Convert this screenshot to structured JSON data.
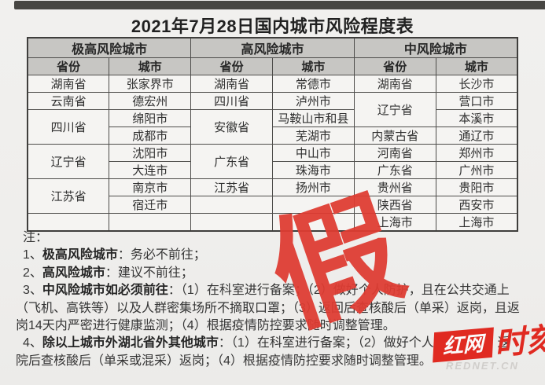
{
  "title": "2021年7月28日国内城市风险程度表",
  "table": {
    "group_headers": [
      "极高风险城市",
      "高风险城市",
      "中风险城市"
    ],
    "col_headers": [
      "省份",
      "城市",
      "省份",
      "城市",
      "省份",
      "城市"
    ],
    "rows": [
      [
        {
          "t": "湖南省"
        },
        {
          "t": "张家界市"
        },
        {
          "t": "湖南省"
        },
        {
          "t": "常德市"
        },
        {
          "t": "湖南省"
        },
        {
          "t": "长沙市"
        }
      ],
      [
        {
          "t": "云南省"
        },
        {
          "t": "德宏州"
        },
        {
          "t": "四川省"
        },
        {
          "t": "泸州市"
        },
        {
          "t": "辽宁省",
          "rs": 2
        },
        {
          "t": "营口市"
        }
      ],
      [
        {
          "t": "四川省",
          "rs": 2
        },
        {
          "t": "绵阳市"
        },
        {
          "t": "安徽省",
          "rs": 2
        },
        {
          "t": "马鞍山市和县"
        },
        {
          "t": "本溪市"
        }
      ],
      [
        {
          "t": "成都市"
        },
        {
          "t": "芜湖市"
        },
        {
          "t": "内蒙古省"
        },
        {
          "t": "通辽市"
        }
      ],
      [
        {
          "t": "辽宁省",
          "rs": 2
        },
        {
          "t": "沈阳市"
        },
        {
          "t": "广东省",
          "rs": 2
        },
        {
          "t": "中山市"
        },
        {
          "t": "河南省"
        },
        {
          "t": "郑州市"
        }
      ],
      [
        {
          "t": "大连市"
        },
        {
          "t": "珠海市"
        },
        {
          "t": "广东省"
        },
        {
          "t": "广州市"
        }
      ],
      [
        {
          "t": "江苏省",
          "rs": 2
        },
        {
          "t": "南京市"
        },
        {
          "t": "江苏省"
        },
        {
          "t": "扬州市"
        },
        {
          "t": "贵州省"
        },
        {
          "t": "贵阳市"
        }
      ],
      [
        {
          "t": "宿迁市"
        },
        {
          "t": ""
        },
        {
          "t": ""
        },
        {
          "t": "陕西省"
        },
        {
          "t": "西安市"
        }
      ],
      [
        {
          "t": ""
        },
        {
          "t": ""
        },
        {
          "t": ""
        },
        {
          "t": ""
        },
        {
          "t": "上海市"
        },
        {
          "t": "上海市"
        }
      ]
    ]
  },
  "notes": {
    "lines": [
      {
        "ind": 1,
        "segs": [
          {
            "t": "注："
          }
        ]
      },
      {
        "ind": 1,
        "segs": [
          {
            "t": "1、"
          },
          {
            "t": "极高风险城市",
            "b": 1
          },
          {
            "t": "：务必不前往；"
          }
        ]
      },
      {
        "ind": 1,
        "segs": [
          {
            "t": "2、"
          },
          {
            "t": "高风险城市",
            "b": 1
          },
          {
            "t": "：建议不前往；"
          }
        ]
      },
      {
        "ind": 1,
        "segs": [
          {
            "t": "3、"
          },
          {
            "t": "中风险城市如必须前往",
            "b": 1
          },
          {
            "t": "：（1）在科室进行备案"
          },
          {
            "t": "；（2）做好个人防护",
            "occ": 1
          },
          {
            "t": "，且在公共交通上"
          }
        ]
      },
      {
        "ind": 0,
        "segs": [
          {
            "t": "（飞机、高铁等）以及人群密集场所不摘取口罩；（"
          },
          {
            "t": "3）返回后查",
            "occ": 1
          },
          {
            "t": "核酸后（单采）返岗，且返"
          }
        ]
      },
      {
        "ind": 0,
        "segs": [
          {
            "t": "岗14天内严密进行健康监测；（4）根据疫情防控要"
          },
          {
            "t": "求随",
            "occ": 1
          },
          {
            "t": "时调整管理。"
          }
        ]
      },
      {
        "ind": 1,
        "segs": [
          {
            "t": "4、"
          },
          {
            "t": "除以上城市外湖北省外其他城市",
            "b": 1
          },
          {
            "t": "：（1）在科室进行备案；（2）做好"
          },
          {
            "t": "个人防护；（3）返",
            "occ": 1
          }
        ]
      },
      {
        "ind": 0,
        "segs": [
          {
            "t": "院后查核酸后（单采或混采）返岗；（4）根据疫情防控要求随时调整管理。"
          }
        ]
      }
    ]
  },
  "watermark": {
    "text": "假",
    "color": "#e23a30"
  },
  "logo": {
    "box_text": "红网",
    "side_text": "时刻",
    "url": "REDNET.CN",
    "red": "#e3271e"
  },
  "colors": {
    "header_bg": "#c9c8c5",
    "border": "#4c4b49",
    "page_bg": "#f2f1ef",
    "stamp_red": "#e23a30"
  }
}
